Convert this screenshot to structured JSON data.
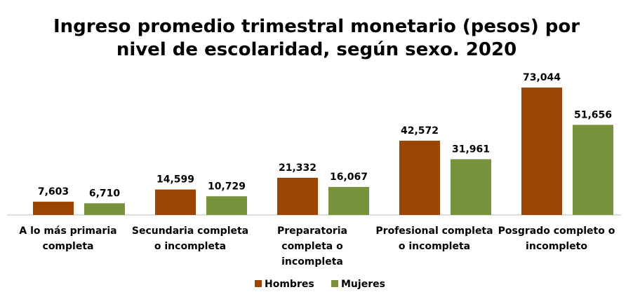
{
  "chart_data": {
    "type": "bar",
    "title": "Ingreso promedio trimestral monetario (pesos) por\nnivel de escolaridad, según sexo. 2020",
    "categories": [
      "A lo más primaria\ncompleta",
      "Secundaria completa\no incompleta",
      "Preparatoria\ncompleta o\nincompleta",
      "Profesional completa\no incompleta",
      "Posgrado completo o\nincompleto"
    ],
    "series": [
      {
        "name": "Hombres",
        "color": "#9b4503",
        "values": [
          7603,
          14599,
          21332,
          42572,
          73044
        ],
        "value_labels": [
          "7,603",
          "14,599",
          "21,332",
          "42,572",
          "73,044"
        ]
      },
      {
        "name": "Mujeres",
        "color": "#77933c",
        "values": [
          6710,
          10729,
          16067,
          31961,
          51656
        ],
        "value_labels": [
          "6,710",
          "10,729",
          "16,067",
          "31,961",
          "51,656"
        ]
      }
    ],
    "legend": "bottom"
  }
}
